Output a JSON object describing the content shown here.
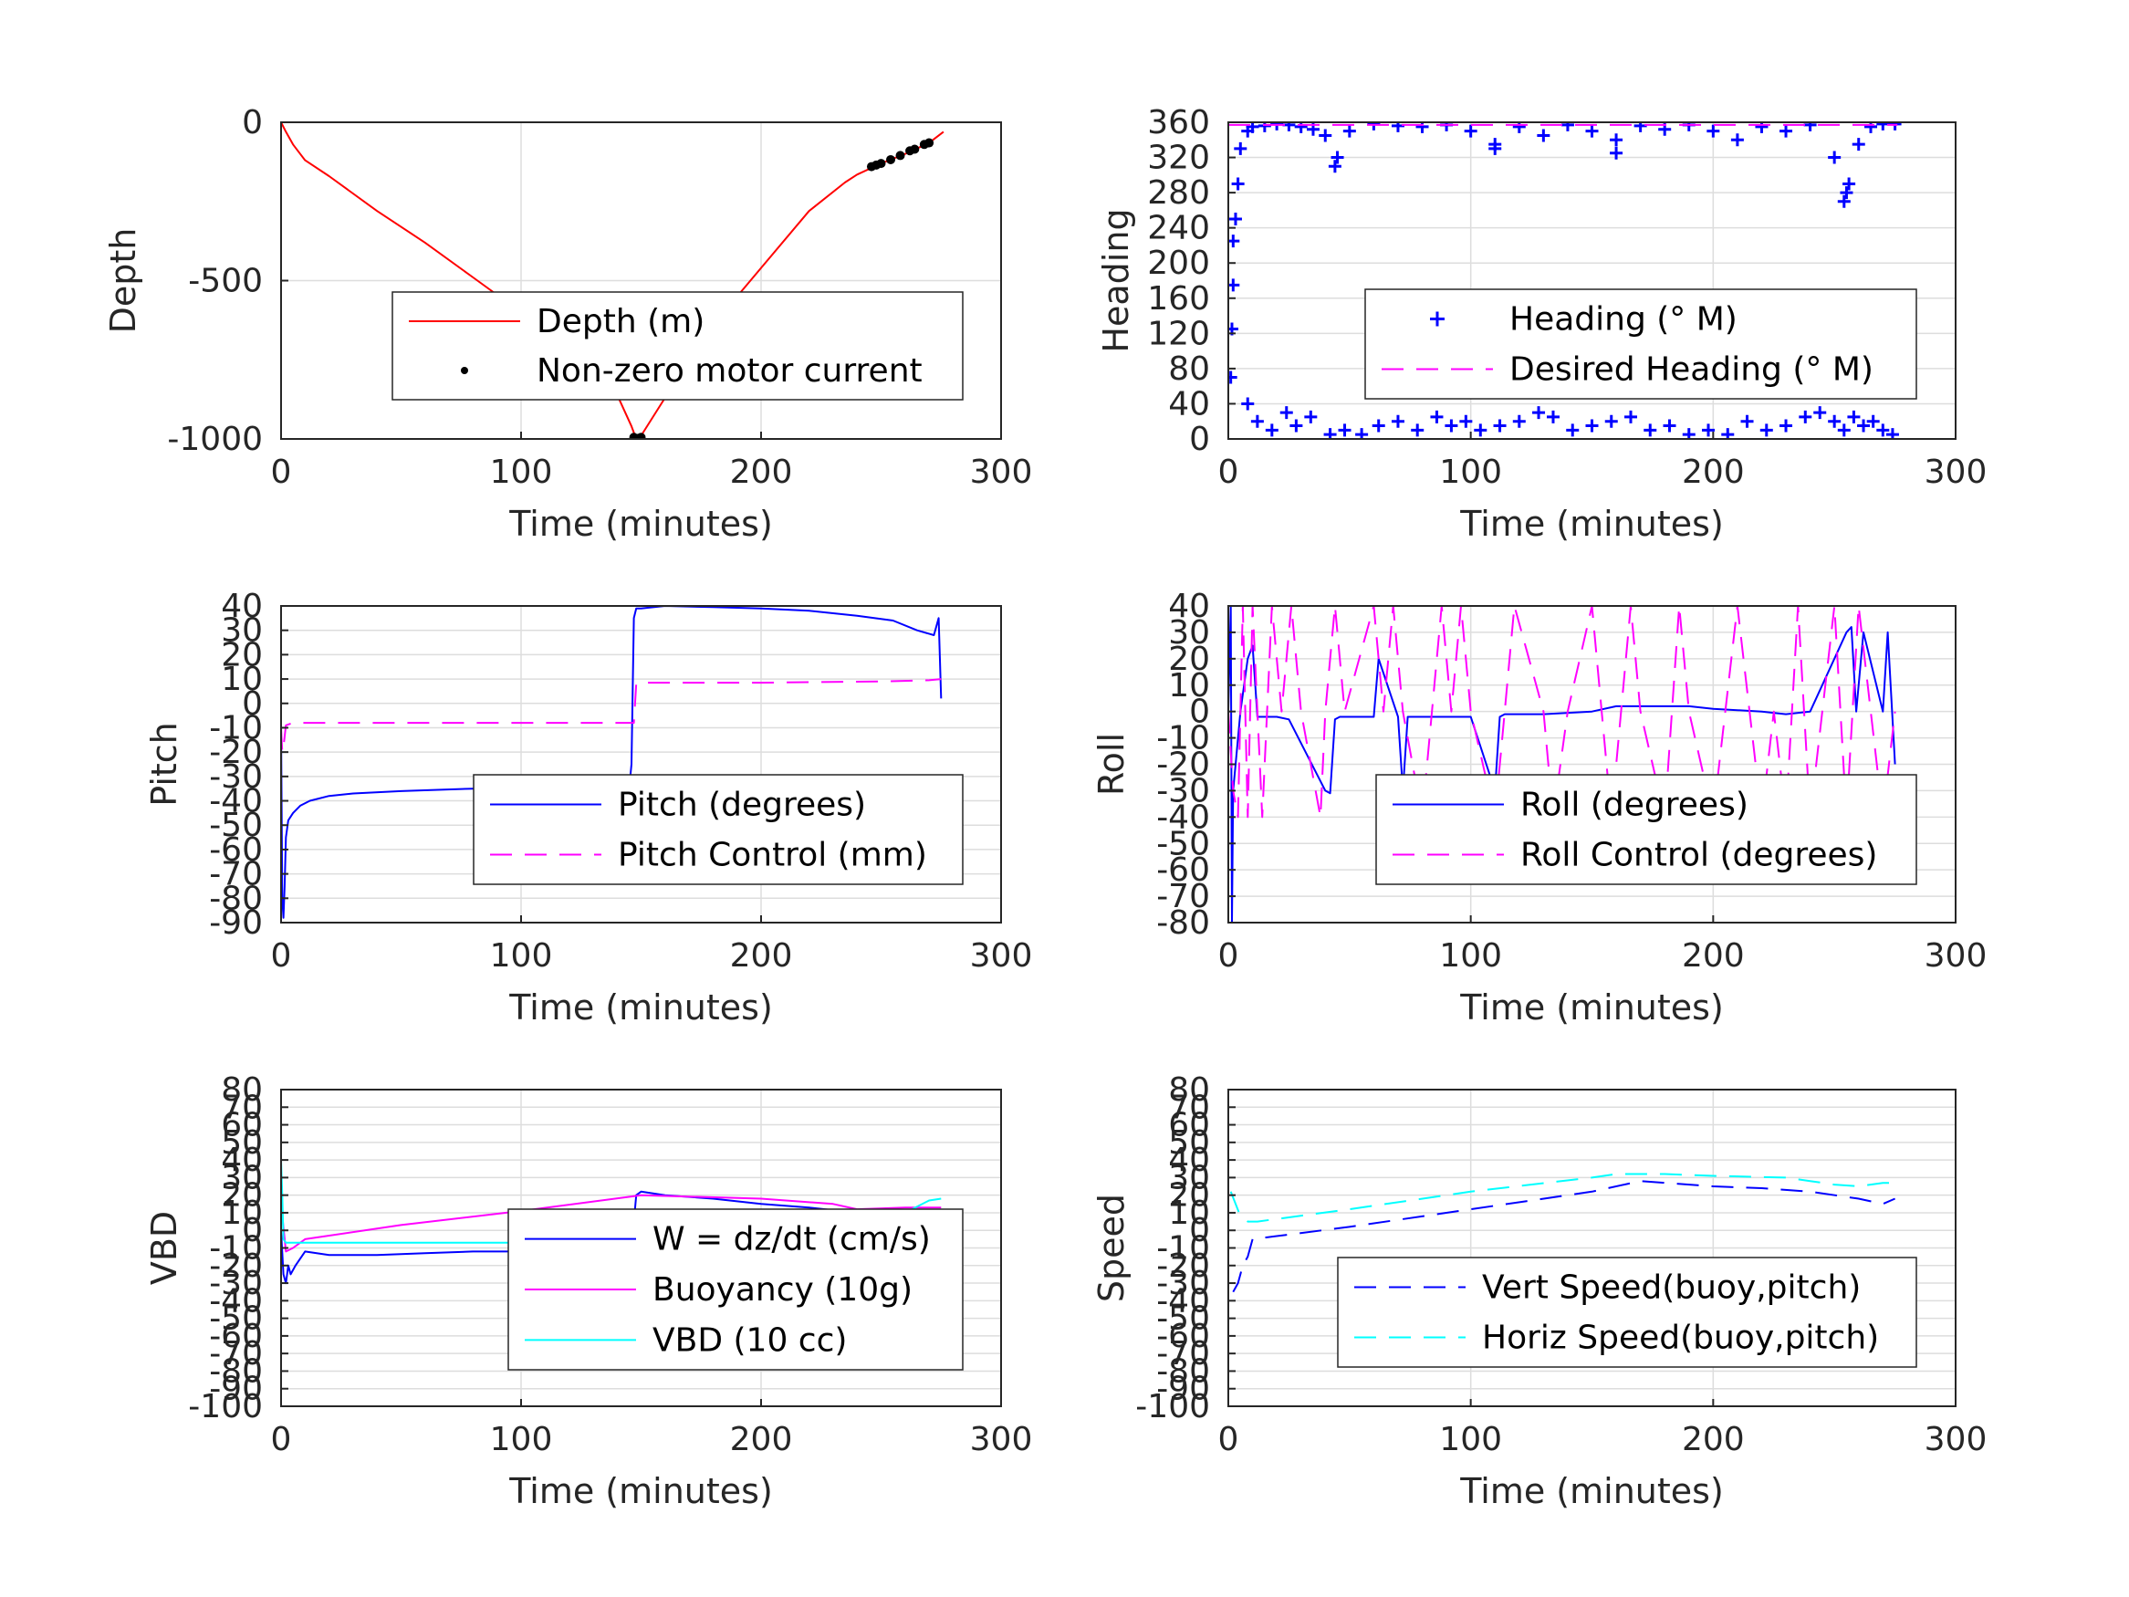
{
  "figure": {
    "background": "#ffffff",
    "grid_color": "#dddddd",
    "axis_color": "#262626"
  },
  "chart_data": [
    {
      "id": "depth",
      "type": "line",
      "title": "",
      "xlabel": "Time (minutes)",
      "ylabel": "Depth",
      "xlim": [
        0,
        300
      ],
      "ylim": [
        -1000,
        0
      ],
      "xticks": [
        0,
        100,
        200,
        300
      ],
      "yticks": [
        -1000,
        -500,
        0
      ],
      "grid": true,
      "legend_position": "center-right",
      "series": [
        {
          "name": "Depth (m)",
          "style": "solid",
          "color": "#ff0000",
          "marker": "none",
          "x": [
            0,
            2,
            5,
            8,
            10,
            20,
            40,
            60,
            80,
            100,
            120,
            140,
            146,
            148,
            150,
            160,
            180,
            200,
            220,
            235,
            240,
            250,
            260,
            270,
            276
          ],
          "y": [
            0,
            -30,
            -70,
            -100,
            -120,
            -170,
            -280,
            -380,
            -490,
            -600,
            -720,
            -860,
            -960,
            -1000,
            -990,
            -870,
            -640,
            -460,
            -280,
            -190,
            -165,
            -130,
            -100,
            -65,
            -30
          ]
        },
        {
          "name": "Non-zero motor current",
          "style": "marker",
          "color": "#000000",
          "marker": "dot",
          "x": [
            147,
            148,
            149,
            150,
            246,
            248,
            250,
            254,
            258,
            262,
            264,
            268,
            270
          ],
          "y": [
            -995,
            -1000,
            -998,
            -995,
            -140,
            -135,
            -130,
            -118,
            -105,
            -90,
            -85,
            -70,
            -65
          ]
        }
      ]
    },
    {
      "id": "heading",
      "type": "scatter",
      "title": "",
      "xlabel": "Time (minutes)",
      "ylabel": "Heading",
      "xlim": [
        0,
        300
      ],
      "ylim": [
        0,
        360
      ],
      "xticks": [
        0,
        100,
        200,
        300
      ],
      "yticks": [
        0,
        40,
        80,
        120,
        160,
        200,
        240,
        280,
        320,
        360
      ],
      "grid": true,
      "legend_position": "center-right",
      "series": [
        {
          "name": "Heading (° M)",
          "style": "marker",
          "color": "#0000ff",
          "marker": "plus",
          "x": [
            1,
            1.5,
            2,
            2,
            3,
            4,
            5,
            8,
            10,
            15,
            20,
            25,
            30,
            35,
            40,
            45,
            50,
            60,
            70,
            80,
            90,
            100,
            110,
            120,
            130,
            140,
            150,
            160,
            170,
            180,
            190,
            200,
            210,
            220,
            230,
            240,
            250,
            255,
            260,
            265,
            270,
            275,
            8,
            12,
            18,
            24,
            28,
            34,
            42,
            48,
            55,
            62,
            70,
            78,
            86,
            92,
            98,
            104,
            112,
            120,
            128,
            134,
            142,
            150,
            158,
            166,
            174,
            182,
            190,
            198,
            206,
            214,
            222,
            230,
            238,
            244,
            250,
            254,
            258,
            262,
            266,
            270,
            274,
            44,
            110,
            160,
            254,
            256
          ],
          "y": [
            70,
            125,
            175,
            225,
            250,
            290,
            330,
            350,
            355,
            356,
            358,
            357,
            355,
            352,
            345,
            320,
            350,
            358,
            356,
            355,
            357,
            350,
            335,
            355,
            345,
            357,
            350,
            340,
            356,
            352,
            357,
            350,
            340,
            355,
            350,
            357,
            320,
            280,
            335,
            355,
            358,
            358,
            40,
            20,
            10,
            30,
            15,
            25,
            5,
            10,
            5,
            15,
            20,
            10,
            25,
            15,
            20,
            10,
            15,
            20,
            30,
            25,
            10,
            15,
            20,
            25,
            10,
            15,
            5,
            10,
            5,
            20,
            10,
            15,
            25,
            30,
            20,
            10,
            25,
            15,
            20,
            10,
            5,
            310,
            330,
            325,
            270,
            290
          ]
        },
        {
          "name": "Desired Heading (° M)",
          "style": "dashed",
          "color": "#ff00ff",
          "marker": "none",
          "x": [
            0,
            276
          ],
          "y": [
            357,
            357
          ]
        }
      ]
    },
    {
      "id": "pitch",
      "type": "line",
      "title": "",
      "xlabel": "Time (minutes)",
      "ylabel": "Pitch",
      "xlim": [
        0,
        300
      ],
      "ylim": [
        -90,
        40
      ],
      "xticks": [
        0,
        100,
        200,
        300
      ],
      "yticks": [
        -90,
        -80,
        -70,
        -60,
        -50,
        -40,
        -30,
        -20,
        -10,
        0,
        10,
        20,
        30,
        40
      ],
      "ytick_labels": [
        "-90",
        "-80",
        "-70",
        "-60",
        "-50",
        "-40",
        "-30",
        "-20",
        "-10",
        "0",
        "10",
        "20",
        "30",
        "40"
      ],
      "grid": true,
      "legend_position": "center-right",
      "series": [
        {
          "name": "Pitch (degrees)",
          "style": "solid",
          "color": "#0000ff",
          "marker": "none",
          "x": [
            0,
            0.5,
            1,
            1.5,
            2,
            3,
            5,
            8,
            12,
            20,
            30,
            50,
            80,
            100,
            120,
            140,
            145,
            146,
            147,
            148,
            150,
            160,
            180,
            200,
            220,
            240,
            255,
            265,
            272,
            274,
            275
          ],
          "y": [
            -10,
            -80,
            -88,
            -75,
            -55,
            -48,
            -45,
            -42,
            -40,
            -38,
            -37,
            -36,
            -35,
            -35,
            -35,
            -35,
            -35,
            -25,
            35,
            39,
            39,
            40,
            39.5,
            39,
            38,
            36,
            34,
            30,
            28,
            35,
            2
          ]
        },
        {
          "name": "Pitch Control (mm)",
          "style": "dashed",
          "color": "#ff00ff",
          "marker": "none",
          "x": [
            0,
            0.5,
            1,
            2,
            5,
            146,
            147,
            148,
            150,
            200,
            250,
            270,
            275
          ],
          "y": [
            -10,
            -20,
            -18,
            -9,
            -8,
            -8,
            -8,
            8,
            8.5,
            8.5,
            9,
            9.5,
            10
          ]
        }
      ]
    },
    {
      "id": "roll",
      "type": "line",
      "title": "",
      "xlabel": "Time (minutes)",
      "ylabel": "Roll",
      "xlim": [
        0,
        300
      ],
      "ylim": [
        -80,
        40
      ],
      "xticks": [
        0,
        100,
        200,
        300
      ],
      "yticks": [
        -80,
        -70,
        -60,
        -50,
        -40,
        -30,
        -20,
        -10,
        0,
        10,
        20,
        30,
        40
      ],
      "grid": true,
      "legend_position": "center-right",
      "series": [
        {
          "name": "Roll (degrees)",
          "style": "solid",
          "color": "#0000ff",
          "marker": "none",
          "x": [
            0,
            1,
            1.5,
            2,
            3,
            5,
            8,
            10,
            12,
            20,
            25,
            40,
            42,
            44,
            46,
            60,
            62,
            70,
            72,
            74,
            90,
            100,
            110,
            112,
            114,
            130,
            150,
            160,
            190,
            200,
            220,
            230,
            240,
            255,
            257,
            259,
            262,
            270,
            272,
            275
          ],
          "y": [
            0,
            40,
            -80,
            -30,
            -20,
            0,
            20,
            25,
            -2,
            -2,
            -3,
            -30,
            -31,
            -3,
            -2,
            -2,
            20,
            -2,
            -30,
            -2,
            -2,
            -2,
            -30,
            -2,
            -1,
            -1,
            0,
            2,
            2,
            1,
            0,
            -1,
            0,
            30,
            32,
            0,
            30,
            0,
            30,
            -20
          ]
        },
        {
          "name": "Roll Control (degrees)",
          "style": "dashed",
          "color": "#ff00ff",
          "marker": "none",
          "x": [
            0,
            2,
            4,
            6,
            8,
            10,
            14,
            18,
            22,
            26,
            30,
            38,
            40,
            44,
            48,
            60,
            64,
            68,
            72,
            80,
            88,
            92,
            96,
            100,
            110,
            114,
            118,
            130,
            134,
            140,
            150,
            158,
            166,
            170,
            180,
            186,
            190,
            200,
            210,
            220,
            225,
            230,
            235,
            240,
            245,
            250,
            255,
            260,
            265,
            270,
            275
          ],
          "y": [
            0,
            -30,
            -40,
            40,
            -40,
            40,
            -40,
            40,
            0,
            40,
            0,
            -40,
            0,
            40,
            0,
            40,
            0,
            40,
            0,
            -40,
            40,
            0,
            40,
            0,
            -40,
            0,
            40,
            0,
            -40,
            0,
            40,
            -40,
            40,
            0,
            -40,
            40,
            0,
            -40,
            40,
            -40,
            0,
            -40,
            40,
            -40,
            0,
            40,
            -40,
            40,
            0,
            -40,
            0
          ]
        }
      ]
    },
    {
      "id": "vbd",
      "type": "line",
      "title": "",
      "xlabel": "Time (minutes)",
      "ylabel": "VBD",
      "xlim": [
        0,
        300
      ],
      "ylim": [
        -100,
        80
      ],
      "xticks": [
        0,
        100,
        200,
        300
      ],
      "yticks": [
        -100,
        -90,
        -80,
        -70,
        -60,
        -50,
        -40,
        -30,
        -20,
        -10,
        0,
        10,
        20,
        30,
        40,
        50,
        60,
        70,
        80
      ],
      "ytick_labels": [
        "-100",
        "-90",
        "-80",
        "-70",
        "-60",
        "-50",
        "-40",
        "-30",
        "-20",
        "-10",
        "0",
        "10",
        "20",
        "30",
        "40",
        "50",
        "60",
        "70",
        "80"
      ],
      "grid": true,
      "legend_position": "center-right",
      "series": [
        {
          "name": "W = dz/dt (cm/s)",
          "style": "solid",
          "color": "#0000ff",
          "marker": "none",
          "x": [
            0,
            1,
            2,
            3,
            4,
            6,
            10,
            20,
            40,
            60,
            80,
            90,
            100,
            120,
            140,
            146,
            148,
            150,
            160,
            180,
            200,
            220,
            240,
            260,
            270,
            275
          ],
          "y": [
            0,
            -25,
            -30,
            -20,
            -25,
            -20,
            -12,
            -14,
            -14,
            -13,
            -12,
            -12,
            -12,
            -10,
            -10,
            -10,
            20,
            22,
            20,
            18,
            15,
            13,
            10,
            8,
            5,
            2
          ]
        },
        {
          "name": "Buoyancy (10g)",
          "style": "solid",
          "color": "#ff00ff",
          "marker": "none",
          "x": [
            0,
            2,
            5,
            10,
            50,
            100,
            150,
            200,
            230,
            240,
            260,
            275
          ],
          "y": [
            15,
            -12,
            -10,
            -5,
            3,
            11,
            20,
            18,
            15,
            12,
            13,
            13
          ]
        },
        {
          "name": "VBD (10 cc)",
          "style": "solid",
          "color": "#00ffff",
          "marker": "none",
          "x": [
            0,
            0.5,
            1,
            2,
            4,
            6,
            10,
            50,
            100,
            146,
            148,
            150,
            200,
            250,
            260,
            270,
            275
          ],
          "y": [
            40,
            20,
            -5,
            -7,
            -7,
            -7,
            -7,
            -7,
            -7,
            -7,
            8,
            8,
            8,
            9,
            10,
            17,
            18
          ]
        }
      ]
    },
    {
      "id": "speed",
      "type": "line",
      "title": "",
      "xlabel": "Time (minutes)",
      "ylabel": "Speed",
      "xlim": [
        0,
        300
      ],
      "ylim": [
        -100,
        80
      ],
      "xticks": [
        0,
        100,
        200,
        300
      ],
      "yticks": [
        -100,
        -90,
        -80,
        -70,
        -60,
        -50,
        -40,
        -30,
        -20,
        -10,
        0,
        10,
        20,
        30,
        40,
        50,
        60,
        70,
        80
      ],
      "ytick_labels": [
        "-100",
        "-90",
        "-80",
        "-70",
        "-60",
        "-50",
        "-40",
        "-30",
        "-20",
        "-10",
        "0",
        "10",
        "20",
        "30",
        "40",
        "50",
        "60",
        "70",
        "80"
      ],
      "grid": true,
      "legend_position": "center-right",
      "series": [
        {
          "name": "Vert Speed(buoy,pitch)",
          "style": "dashed",
          "color": "#0000ff",
          "marker": "none",
          "x": [
            2,
            4,
            6,
            8,
            10,
            50,
            100,
            150,
            170,
            180,
            200,
            220,
            240,
            260,
            270,
            275
          ],
          "y": [
            -35,
            -30,
            -20,
            -15,
            -5,
            2,
            12,
            22,
            28,
            27,
            25,
            24,
            22,
            18,
            15,
            18
          ]
        },
        {
          "name": "Horiz Speed(buoy,pitch)",
          "style": "dashed",
          "color": "#00ffff",
          "marker": "none",
          "x": [
            1,
            3,
            5,
            8,
            10,
            12,
            50,
            100,
            150,
            160,
            180,
            200,
            230,
            240,
            250,
            260,
            270,
            275
          ],
          "y": [
            22,
            15,
            8,
            5,
            5,
            5,
            12,
            22,
            30,
            32,
            32,
            31,
            30,
            28,
            26,
            25,
            27,
            27
          ]
        }
      ]
    }
  ]
}
